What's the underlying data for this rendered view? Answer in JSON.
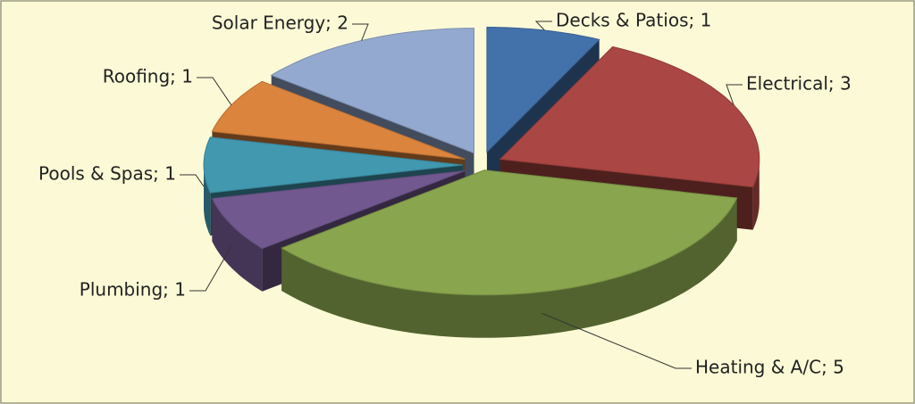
{
  "chart_data": {
    "type": "pie3d",
    "categories": [
      "Decks & Patios",
      "Electrical",
      "Heating & A/C",
      "Plumbing",
      "Pools & Spas",
      "Roofing",
      "Solar Energy"
    ],
    "values": [
      1,
      3,
      5,
      1,
      1,
      1,
      2
    ],
    "value_labels": [
      "Decks & Patios; 1",
      "Electrical; 3",
      "Heating & A/C; 5",
      "Plumbing; 1",
      "Pools & Spas; 1",
      "Roofing; 1",
      "Solar Energy; 2"
    ],
    "colors": [
      "#4372aa",
      "#aa4643",
      "#89a54e",
      "#71588f",
      "#4198af",
      "#db843d",
      "#93a9cf"
    ]
  }
}
